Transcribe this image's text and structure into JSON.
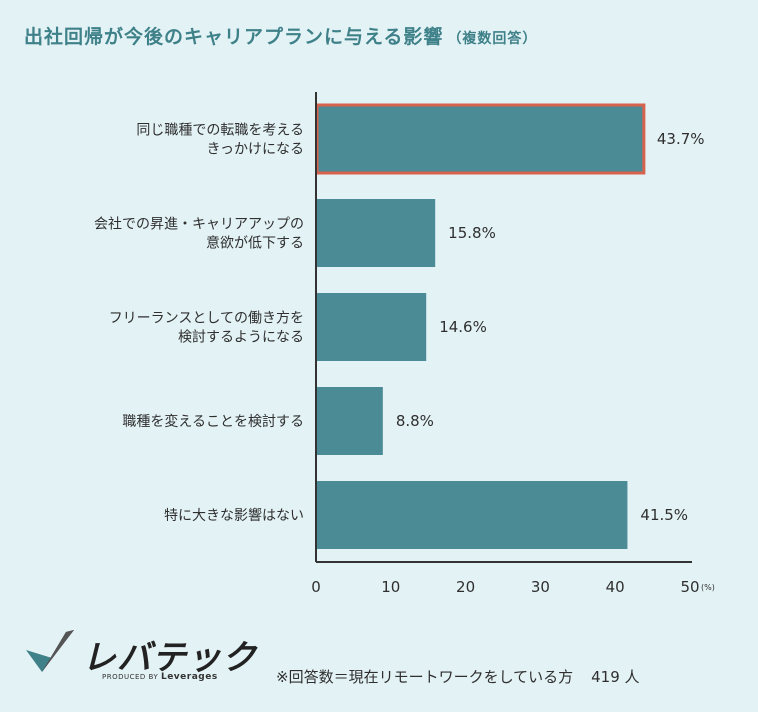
{
  "title": {
    "main": "出社回帰が今後のキャリアプランに与える影響",
    "sub": "（複数回答）"
  },
  "chart_data": {
    "type": "bar",
    "orientation": "horizontal",
    "categories": [
      [
        "同じ職種での転職を考える",
        "きっかけになる"
      ],
      [
        "会社での昇進・キャリアアップの",
        "意欲が低下する"
      ],
      [
        "フリーランスとしての働き方を",
        "検討するようになる"
      ],
      [
        "職種を変えることを検討する"
      ],
      [
        "特に大きな影響はない"
      ]
    ],
    "values": [
      43.7,
      15.8,
      14.6,
      8.8,
      41.5
    ],
    "value_labels": [
      "43.7%",
      "15.8%",
      "14.6%",
      "8.8%",
      "41.5%"
    ],
    "highlight_index": 0,
    "xlim": [
      0,
      50
    ],
    "xticks": [
      0,
      10,
      20,
      30,
      40,
      50
    ],
    "x_unit": "(%)",
    "colors": {
      "bar": "#4b8b96",
      "highlight_border": "#d8634c",
      "axis": "#333333"
    }
  },
  "footer": {
    "logo_text": "レバテック",
    "logo_sub_prefix": "PRODUCED BY",
    "logo_sub_brand": "Leverages",
    "note": "※回答数＝現在リモートワークをしている方",
    "count": "419 人"
  }
}
